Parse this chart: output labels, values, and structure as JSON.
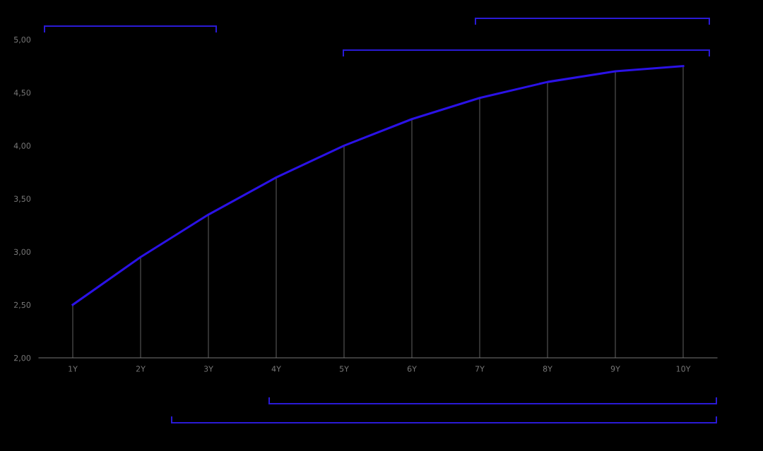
{
  "chart_data": {
    "type": "line",
    "categories": [
      "1Y",
      "2Y",
      "3Y",
      "4Y",
      "5Y",
      "6Y",
      "7Y",
      "8Y",
      "9Y",
      "10Y"
    ],
    "series": [
      {
        "type": "bar",
        "color": "#555555",
        "values": [
          2.5,
          2.95,
          3.35,
          3.7,
          4.0,
          4.25,
          4.45,
          4.6,
          4.7,
          4.75
        ]
      },
      {
        "color": "#2b12e6",
        "values": [
          2.5,
          2.95,
          3.35,
          3.7,
          4.0,
          4.25,
          4.45,
          4.6,
          4.7,
          4.75
        ]
      }
    ],
    "ylim": [
      2,
      5
    ],
    "yticks": [
      {
        "value": 2,
        "label": "2,00"
      },
      {
        "value": 2.5,
        "label": "2,50"
      },
      {
        "value": 3,
        "label": "3,00"
      },
      {
        "value": 3.5,
        "label": "3,50"
      },
      {
        "value": 4,
        "label": "4,00"
      },
      {
        "value": 4.5,
        "label": "4,50"
      },
      {
        "value": 5,
        "label": "5,00"
      }
    ],
    "grid": false,
    "marker": "none",
    "line_style": "solid"
  }
}
